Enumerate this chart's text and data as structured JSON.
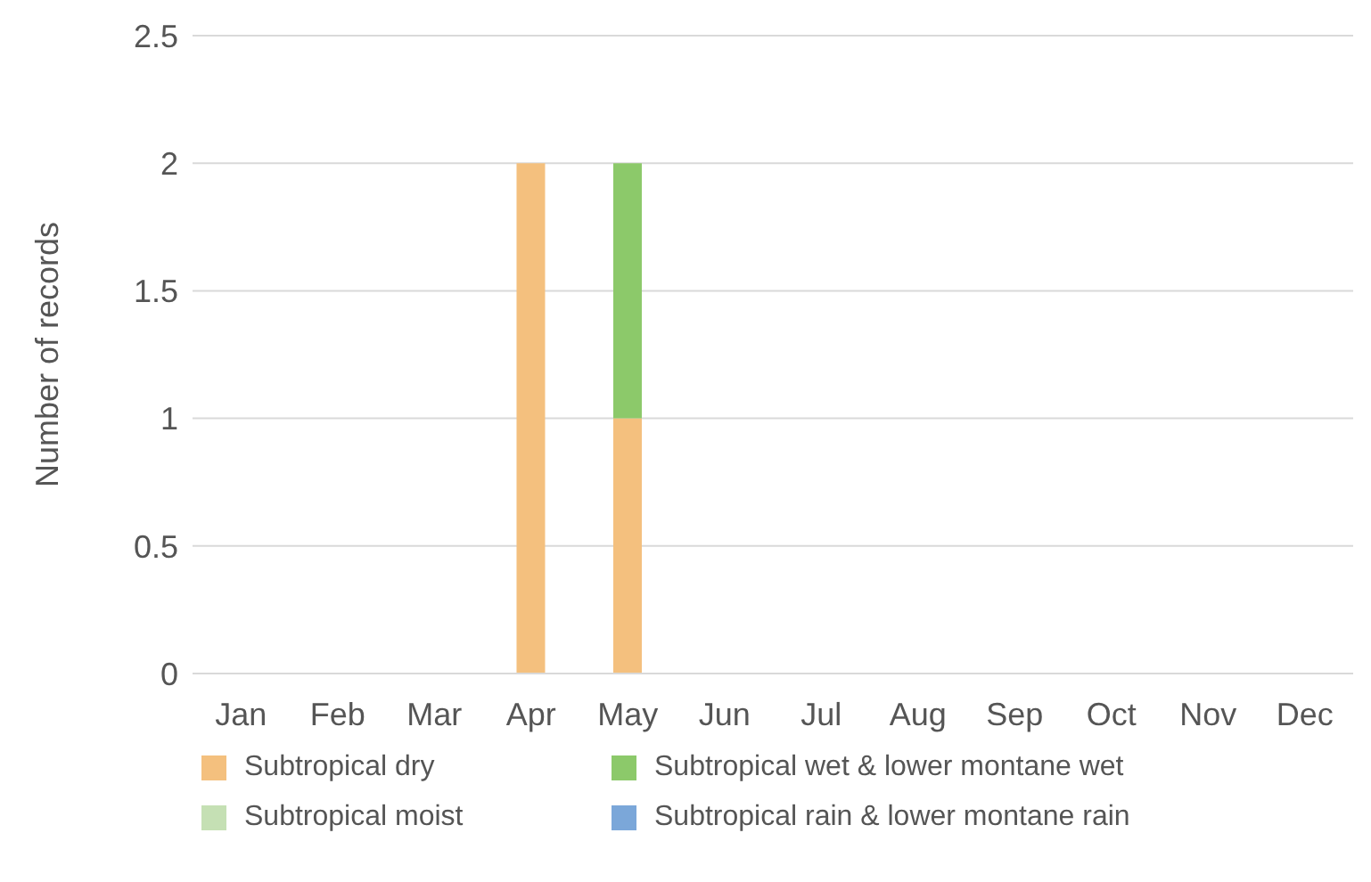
{
  "chart_data": {
    "type": "bar",
    "stacked": true,
    "ylabel": "Number of records",
    "categories": [
      "Jan",
      "Feb",
      "Mar",
      "Apr",
      "May",
      "Jun",
      "Jul",
      "Aug",
      "Sep",
      "Oct",
      "Nov",
      "Dec"
    ],
    "series": [
      {
        "name": "Subtropical dry",
        "color": "#f4c07e",
        "values": [
          0,
          0,
          0,
          2,
          1,
          0,
          0,
          0,
          0,
          0,
          0,
          0
        ]
      },
      {
        "name": "Subtropical wet & lower montane wet",
        "color": "#8cc96a",
        "values": [
          0,
          0,
          0,
          0,
          1,
          0,
          0,
          0,
          0,
          0,
          0,
          0
        ]
      },
      {
        "name": "Subtropical moist",
        "color": "#c5e0b4",
        "values": [
          0,
          0,
          0,
          0,
          0,
          0,
          0,
          0,
          0,
          0,
          0,
          0
        ]
      },
      {
        "name": "Subtropical rain & lower montane rain",
        "color": "#7ba7d9",
        "values": [
          0,
          0,
          0,
          0,
          0,
          0,
          0,
          0,
          0,
          0,
          0,
          0
        ]
      }
    ],
    "ylim": [
      0,
      2.5
    ],
    "yticks": [
      0,
      0.5,
      1,
      1.5,
      2,
      2.5
    ],
    "grid": "y",
    "legend": "bottom"
  }
}
